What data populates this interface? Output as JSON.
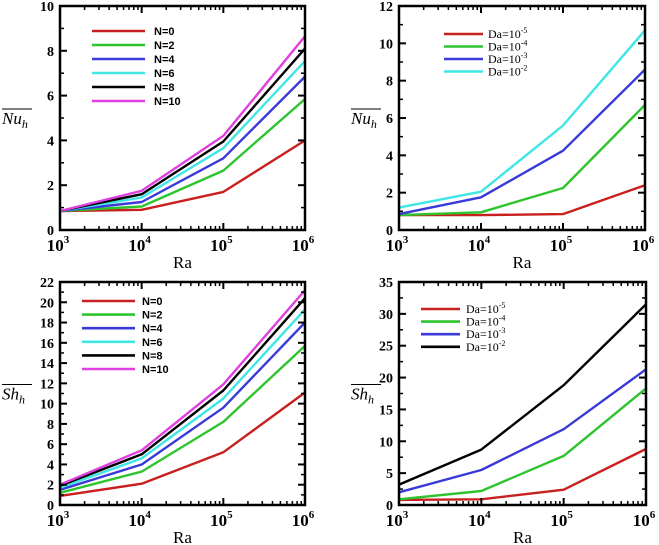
{
  "chart_data": [
    {
      "type": "line",
      "xlabel": "Ra",
      "ylabel": {
        "base": "Nu",
        "sub": "h"
      },
      "x": [
        1000,
        10000,
        100000,
        1000000
      ],
      "xscale": "log",
      "xticks": [
        {
          "base": "10",
          "exp": "3"
        },
        {
          "base": "10",
          "exp": "4"
        },
        {
          "base": "10",
          "exp": "5"
        },
        {
          "base": "10",
          "exp": "6"
        }
      ],
      "ylim": [
        0,
        10
      ],
      "yticks": [
        0,
        2,
        4,
        6,
        8,
        10
      ],
      "legend_placement": "top-left",
      "legend_style": "sans",
      "series": [
        {
          "name": "N=0",
          "color": "#c8201e",
          "values": [
            0.85,
            0.9,
            1.7,
            4.0
          ]
        },
        {
          "name": "N=2",
          "color": "#2ec42e",
          "values": [
            0.85,
            1.05,
            2.65,
            5.85
          ]
        },
        {
          "name": "N=4",
          "color": "#3a3ad8",
          "values": [
            0.85,
            1.25,
            3.2,
            6.85
          ]
        },
        {
          "name": "N=6",
          "color": "#40e6e6",
          "values": [
            0.85,
            1.45,
            3.65,
            7.55
          ]
        },
        {
          "name": "N=8",
          "color": "#000000",
          "values": [
            0.85,
            1.6,
            3.95,
            8.1
          ]
        },
        {
          "name": "N=10",
          "color": "#e040e0",
          "values": [
            0.85,
            1.75,
            4.2,
            8.65
          ]
        }
      ]
    },
    {
      "type": "line",
      "xlabel": "Ra",
      "ylabel": {
        "base": "Nu",
        "sub": "h"
      },
      "x": [
        1000,
        10000,
        100000,
        1000000
      ],
      "xscale": "log",
      "xticks": [
        {
          "base": "10",
          "exp": "3"
        },
        {
          "base": "10",
          "exp": "4"
        },
        {
          "base": "10",
          "exp": "5"
        },
        {
          "base": "10",
          "exp": "6"
        }
      ],
      "ylim": [
        0,
        12
      ],
      "yticks": [
        0,
        2,
        4,
        6,
        8,
        10,
        12
      ],
      "legend_placement": "top-left",
      "legend_style": "serif",
      "series": [
        {
          "name": "Da=10",
          "exp": "-5",
          "color": "#c8201e",
          "values": [
            0.8,
            0.8,
            0.85,
            2.4
          ]
        },
        {
          "name": "Da=10",
          "exp": "-4",
          "color": "#2ec42e",
          "values": [
            0.8,
            0.95,
            2.25,
            6.7
          ]
        },
        {
          "name": "Da=10",
          "exp": "-3",
          "color": "#3a3ad8",
          "values": [
            0.85,
            1.75,
            4.25,
            8.6
          ]
        },
        {
          "name": "Da=10",
          "exp": "-2",
          "color": "#40e6e6",
          "values": [
            1.2,
            2.05,
            5.6,
            10.7
          ]
        }
      ]
    },
    {
      "type": "line",
      "xlabel": "Ra",
      "ylabel": {
        "base": "Sh",
        "sub": "h"
      },
      "x": [
        1000,
        10000,
        100000,
        1000000
      ],
      "xscale": "log",
      "xticks": [
        {
          "base": "10",
          "exp": "3"
        },
        {
          "base": "10",
          "exp": "4"
        },
        {
          "base": "10",
          "exp": "5"
        },
        {
          "base": "10",
          "exp": "6"
        }
      ],
      "ylim": [
        0,
        22
      ],
      "yticks": [
        0,
        2,
        4,
        6,
        8,
        10,
        12,
        14,
        16,
        18,
        20,
        22
      ],
      "legend_placement": "top-left",
      "legend_style": "sans",
      "series": [
        {
          "name": "N=0",
          "color": "#c8201e",
          "values": [
            0.9,
            2.1,
            5.2,
            11.1
          ]
        },
        {
          "name": "N=2",
          "color": "#2ec42e",
          "values": [
            1.2,
            3.3,
            8.2,
            15.7
          ]
        },
        {
          "name": "N=4",
          "color": "#3a3ad8",
          "values": [
            1.5,
            4.0,
            9.6,
            18.0
          ]
        },
        {
          "name": "N=6",
          "color": "#40e6e6",
          "values": [
            1.7,
            4.6,
            10.5,
            19.3
          ]
        },
        {
          "name": "N=8",
          "color": "#000000",
          "values": [
            1.9,
            5.0,
            11.3,
            20.4
          ]
        },
        {
          "name": "N=10",
          "color": "#e040e0",
          "values": [
            2.0,
            5.4,
            11.9,
            21.2
          ]
        }
      ]
    },
    {
      "type": "line",
      "xlabel": "Ra",
      "ylabel": {
        "base": "Sh",
        "sub": "h"
      },
      "x": [
        1000,
        10000,
        100000,
        1000000
      ],
      "xscale": "log",
      "xticks": [
        {
          "base": "10",
          "exp": "3"
        },
        {
          "base": "10",
          "exp": "4"
        },
        {
          "base": "10",
          "exp": "5"
        },
        {
          "base": "10",
          "exp": "6"
        }
      ],
      "ylim": [
        0,
        35
      ],
      "yticks": [
        0,
        5,
        10,
        15,
        20,
        25,
        30,
        35
      ],
      "legend_placement": "top-left",
      "legend_style": "serif",
      "series": [
        {
          "name": "Da=10",
          "exp": "-5",
          "color": "#c8201e",
          "values": [
            0.8,
            0.9,
            2.4,
            8.8
          ]
        },
        {
          "name": "Da=10",
          "exp": "-4",
          "color": "#2ec42e",
          "values": [
            0.9,
            2.2,
            7.7,
            18.3
          ]
        },
        {
          "name": "Da=10",
          "exp": "-3",
          "color": "#3a3ad8",
          "values": [
            2.0,
            5.5,
            11.9,
            21.3
          ]
        },
        {
          "name": "Da=10",
          "exp": "-2",
          "color": "#000000",
          "values": [
            3.2,
            8.7,
            18.8,
            31.5
          ]
        }
      ]
    }
  ]
}
